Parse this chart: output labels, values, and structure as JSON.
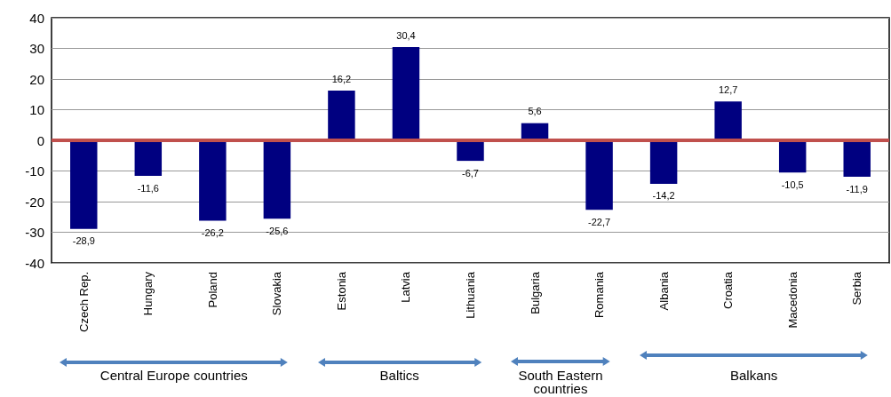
{
  "chart_data": {
    "type": "bar",
    "categories": [
      "Czech Rep.",
      "Hungary",
      "Poland",
      "Slovakia",
      "Estonia",
      "Latvia",
      "Lithuania",
      "Bulgaria",
      "Romania",
      "Albania",
      "Croatia",
      "Macedonia",
      "Serbia"
    ],
    "values": [
      -28.9,
      -11.6,
      -26.2,
      -25.6,
      16.2,
      30.4,
      -6.7,
      5.6,
      -22.7,
      -14.2,
      12.7,
      -10.5,
      -11.9
    ],
    "value_labels": [
      "-28,9",
      "-11,6",
      "-26,2",
      "-25,6",
      "16,2",
      "30,4",
      "-6,7",
      "5,6",
      "-22,7",
      "-14,2",
      "12,7",
      "-10,5",
      "-11,9"
    ],
    "color": "#000080",
    "ylim": [
      -40,
      40
    ],
    "yticks": [
      -40,
      -30,
      -20,
      -10,
      0,
      10,
      20,
      30,
      40
    ],
    "grid": "y",
    "ref_lines": [
      {
        "axis": "y",
        "value": 0,
        "color": "#c0504d"
      }
    ],
    "annotations": [
      "Central Europe countries",
      "Baltics",
      "South Eastern countries",
      "Balkans"
    ]
  }
}
